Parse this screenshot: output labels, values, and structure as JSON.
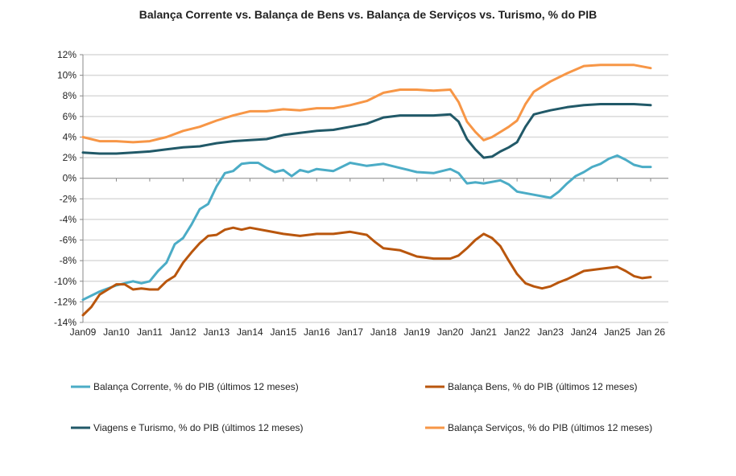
{
  "chart_data": {
    "type": "line",
    "title": "Balança Corrente vs. Balança de Bens vs. Balança de Serviços vs. Turismo, % do PIB",
    "xlabel": "",
    "ylabel": "",
    "ylim": [
      -14,
      12
    ],
    "xlim": [
      2009,
      2026
    ],
    "yticks": [
      12,
      10,
      8,
      6,
      4,
      2,
      0,
      -2,
      -4,
      -6,
      -8,
      -10,
      -12,
      -14
    ],
    "ytick_labels": [
      "12%",
      "10%",
      "8%",
      "6%",
      "4%",
      "2%",
      "0%",
      "-2%",
      "-4%",
      "-6%",
      "-8%",
      "-10%",
      "-12%",
      "-14%"
    ],
    "xticks": [
      2009,
      2010,
      2011,
      2012,
      2013,
      2014,
      2015,
      2016,
      2017,
      2018,
      2019,
      2020,
      2021,
      2022,
      2023,
      2024,
      2025,
      2026
    ],
    "xtick_labels": [
      "Jan09",
      "Jan10",
      "Jan11",
      "Jan12",
      "Jan13",
      "Jan14",
      "Jan15",
      "Jan16",
      "Jan17",
      "Jan18",
      "Jan19",
      "Jan20",
      "Jan21",
      "Jan22",
      "Jan23",
      "Jan24",
      "Jan25",
      "Jan 26"
    ],
    "grid": true,
    "legend_position": "bottom",
    "series": [
      {
        "name": "Balança Corrente,  % do PIB (últimos 12 meses)",
        "color": "#4bacc6",
        "x": [
          2009,
          2009.5,
          2010,
          2010.25,
          2010.5,
          2010.75,
          2011,
          2011.25,
          2011.5,
          2011.75,
          2012,
          2012.25,
          2012.5,
          2012.75,
          2013,
          2013.25,
          2013.5,
          2013.75,
          2014,
          2014.25,
          2014.5,
          2014.75,
          2015,
          2015.25,
          2015.5,
          2015.75,
          2016,
          2016.5,
          2017,
          2017.5,
          2018,
          2018.5,
          2019,
          2019.5,
          2020,
          2020.25,
          2020.5,
          2020.75,
          2021,
          2021.5,
          2021.75,
          2022,
          2022.5,
          2023,
          2023.25,
          2023.5,
          2023.75,
          2024,
          2024.25,
          2024.5,
          2024.75,
          2025,
          2025.25,
          2025.5,
          2025.75,
          2026
        ],
        "y": [
          -11.8,
          -11,
          -10.4,
          -10.2,
          -10.0,
          -10.2,
          -10.0,
          -9.0,
          -8.2,
          -6.4,
          -5.8,
          -4.5,
          -3.0,
          -2.5,
          -0.8,
          0.5,
          0.7,
          1.4,
          1.5,
          1.5,
          1.0,
          0.6,
          0.8,
          0.2,
          0.8,
          0.6,
          0.9,
          0.7,
          1.5,
          1.2,
          1.4,
          1.0,
          0.6,
          0.5,
          0.9,
          0.5,
          -0.5,
          -0.4,
          -0.5,
          -0.2,
          -0.6,
          -1.3,
          -1.6,
          -1.9,
          -1.3,
          -0.5,
          0.2,
          0.6,
          1.1,
          1.4,
          1.9,
          2.2,
          1.8,
          1.3,
          1.1,
          1.1
        ]
      },
      {
        "name": "Balança Bens,  % do PIB (últimos 12 meses)",
        "color": "#b9560d",
        "x": [
          2009,
          2009.25,
          2009.5,
          2009.75,
          2010,
          2010.25,
          2010.5,
          2010.75,
          2011,
          2011.25,
          2011.5,
          2011.75,
          2012,
          2012.25,
          2012.5,
          2012.75,
          2013,
          2013.25,
          2013.5,
          2013.75,
          2014,
          2014.5,
          2015,
          2015.5,
          2016,
          2016.5,
          2017,
          2017.5,
          2017.75,
          2018,
          2018.5,
          2019,
          2019.5,
          2020,
          2020.25,
          2020.5,
          2020.75,
          2021,
          2021.25,
          2021.5,
          2021.75,
          2022,
          2022.25,
          2022.5,
          2022.75,
          2023,
          2023.25,
          2023.5,
          2023.75,
          2024,
          2024.5,
          2025,
          2025.25,
          2025.5,
          2025.75,
          2026
        ],
        "y": [
          -13.3,
          -12.5,
          -11.3,
          -10.8,
          -10.3,
          -10.3,
          -10.8,
          -10.7,
          -10.8,
          -10.8,
          -10.0,
          -9.5,
          -8.2,
          -7.2,
          -6.3,
          -5.6,
          -5.5,
          -5.0,
          -4.8,
          -5.0,
          -4.8,
          -5.1,
          -5.4,
          -5.6,
          -5.4,
          -5.4,
          -5.2,
          -5.5,
          -6.2,
          -6.8,
          -7.0,
          -7.6,
          -7.8,
          -7.8,
          -7.5,
          -6.8,
          -6.0,
          -5.4,
          -5.8,
          -6.6,
          -8.0,
          -9.3,
          -10.2,
          -10.5,
          -10.7,
          -10.5,
          -10.1,
          -9.8,
          -9.4,
          -9.0,
          -8.8,
          -8.6,
          -9.0,
          -9.5,
          -9.7,
          -9.6
        ]
      },
      {
        "name": "Viagens e Turismo,  % do PIB (últimos 12 meses)",
        "color": "#215968",
        "x": [
          2009,
          2009.5,
          2010,
          2010.5,
          2011,
          2011.5,
          2012,
          2012.5,
          2013,
          2013.5,
          2014,
          2014.5,
          2015,
          2015.5,
          2016,
          2016.5,
          2017,
          2017.5,
          2018,
          2018.5,
          2019,
          2019.5,
          2020,
          2020.25,
          2020.5,
          2020.75,
          2021,
          2021.25,
          2021.5,
          2021.75,
          2022,
          2022.25,
          2022.5,
          2022.75,
          2023,
          2023.5,
          2024,
          2024.5,
          2025,
          2025.5,
          2026
        ],
        "y": [
          2.5,
          2.4,
          2.4,
          2.5,
          2.6,
          2.8,
          3.0,
          3.1,
          3.4,
          3.6,
          3.7,
          3.8,
          4.2,
          4.4,
          4.6,
          4.7,
          5.0,
          5.3,
          5.9,
          6.1,
          6.1,
          6.1,
          6.2,
          5.5,
          3.8,
          2.8,
          2.0,
          2.1,
          2.6,
          3.0,
          3.5,
          5.0,
          6.2,
          6.4,
          6.6,
          6.9,
          7.1,
          7.2,
          7.2,
          7.2,
          7.1
        ]
      },
      {
        "name": "Balança Serviços,  % do PIB (últimos 12 meses)",
        "color": "#f79646",
        "x": [
          2009,
          2009.5,
          2010,
          2010.5,
          2011,
          2011.5,
          2012,
          2012.5,
          2013,
          2013.5,
          2014,
          2014.5,
          2015,
          2015.5,
          2016,
          2016.5,
          2017,
          2017.5,
          2018,
          2018.5,
          2019,
          2019.5,
          2020,
          2020.25,
          2020.5,
          2020.75,
          2021,
          2021.25,
          2021.5,
          2021.75,
          2022,
          2022.25,
          2022.5,
          2022.75,
          2023,
          2023.5,
          2024,
          2024.5,
          2025,
          2025.5,
          2026
        ],
        "y": [
          4.0,
          3.6,
          3.6,
          3.5,
          3.6,
          4.0,
          4.6,
          5.0,
          5.6,
          6.1,
          6.5,
          6.5,
          6.7,
          6.6,
          6.8,
          6.8,
          7.1,
          7.5,
          8.3,
          8.6,
          8.6,
          8.5,
          8.6,
          7.4,
          5.5,
          4.5,
          3.7,
          4.0,
          4.5,
          5.0,
          5.6,
          7.2,
          8.4,
          8.9,
          9.4,
          10.2,
          10.9,
          11.0,
          11.0,
          11.0,
          10.7
        ]
      }
    ]
  }
}
